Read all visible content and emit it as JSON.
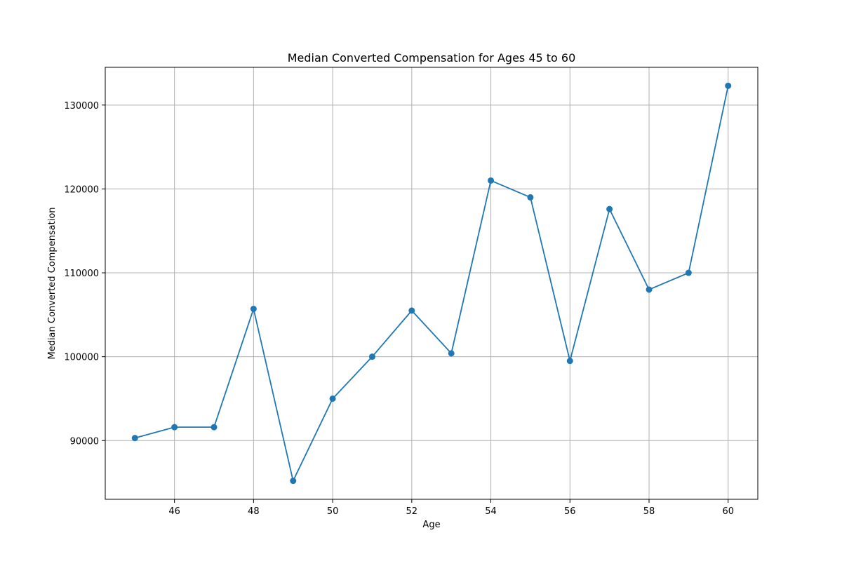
{
  "chart_data": {
    "type": "line",
    "title": "Median Converted Compensation for Ages 45 to 60",
    "xlabel": "Age",
    "ylabel": "Median Converted Compensation",
    "xlim": [
      44.25,
      60.75
    ],
    "ylim": [
      83000,
      134500
    ],
    "xticks": [
      46,
      48,
      50,
      52,
      54,
      56,
      58,
      60
    ],
    "yticks": [
      90000,
      100000,
      110000,
      120000,
      130000
    ],
    "grid": true,
    "series": [
      {
        "color": "#1f77b4",
        "marker": "circle",
        "x": [
          45,
          46,
          47,
          48,
          49,
          50,
          51,
          52,
          53,
          54,
          55,
          56,
          57,
          58,
          59,
          60
        ],
        "y": [
          90300,
          91600,
          91600,
          105700,
          85200,
          95000,
          100000,
          105500,
          100400,
          121000,
          119000,
          99500,
          117600,
          108000,
          110000,
          132300
        ]
      }
    ]
  }
}
